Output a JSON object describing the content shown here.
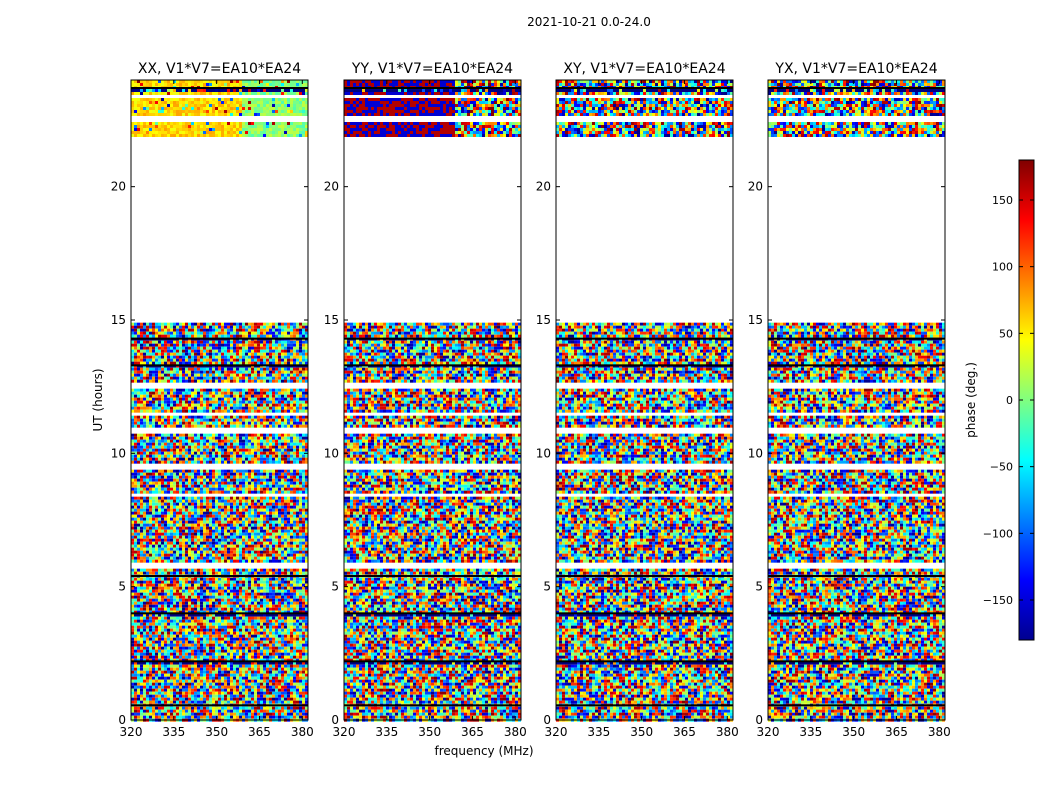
{
  "suptitle": "2021-10-21 0.0-24.0",
  "chart_data": {
    "type": "heatmap",
    "xlabel": "frequency (MHz)",
    "ylabel": "UT (hours)",
    "xlim": [
      320,
      382
    ],
    "ylim": [
      0,
      24
    ],
    "xticks": [
      320,
      335,
      350,
      365,
      380
    ],
    "yticks": [
      0,
      5,
      10,
      15,
      20
    ],
    "data_time_ranges_hours": [
      [
        0,
        14.9
      ],
      [
        21.9,
        24
      ]
    ],
    "empty_time_range_hours": [
      14.9,
      21.9
    ],
    "panels": [
      {
        "title": "XX, V1*V7=EA10*EA24"
      },
      {
        "title": "YY, V1*V7=EA10*EA24"
      },
      {
        "title": "XY, V1*V7=EA10*EA24"
      },
      {
        "title": "YX, V1*V7=EA10*EA24"
      }
    ],
    "colorbar": {
      "label": "phase (deg.)",
      "colormap": "jet",
      "range": [
        -180,
        180
      ],
      "ticks": [
        -150,
        -100,
        -50,
        0,
        50,
        100,
        150
      ],
      "tick_labels": [
        "−150",
        "−100",
        "−50",
        "0",
        "50",
        "100",
        "150"
      ]
    }
  }
}
